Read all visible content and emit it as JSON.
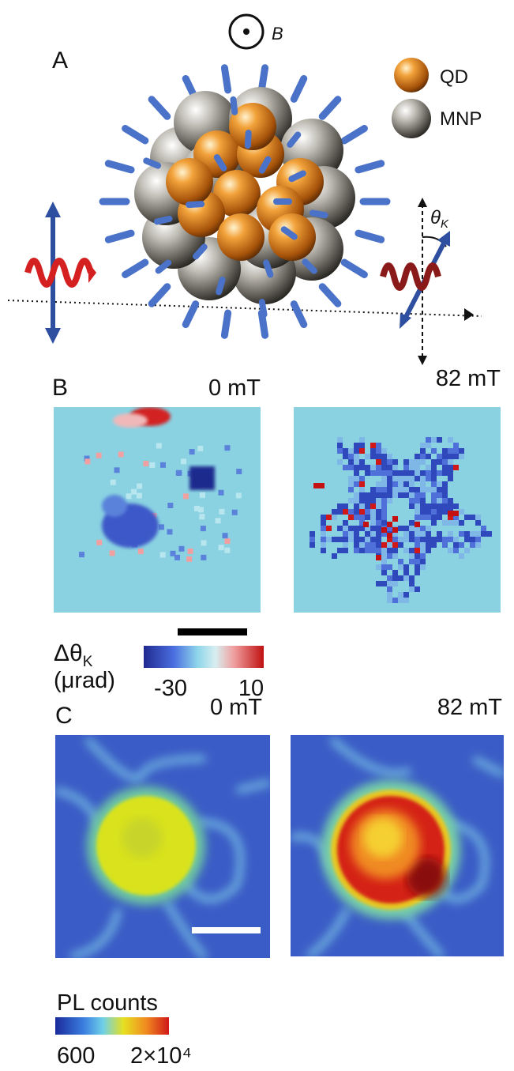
{
  "panel_a": {
    "label": "A",
    "field_label": "B",
    "legend": [
      "QD",
      "MNP"
    ],
    "angle_label": "θ",
    "angle_subscript": "K"
  },
  "panel_b": {
    "label": "B",
    "conditions": [
      "0 mT",
      "82 mT"
    ],
    "colorbar": {
      "title": "Δθ",
      "title_subscript": "K",
      "unit": "(μrad)",
      "min_label": "-30",
      "max_label": "10"
    }
  },
  "panel_c": {
    "label": "C",
    "conditions": [
      "0 mT",
      "82 mT"
    ],
    "colorbar": {
      "title": "PL counts",
      "min_label": "600",
      "max_label": "2×10⁴"
    }
  }
}
